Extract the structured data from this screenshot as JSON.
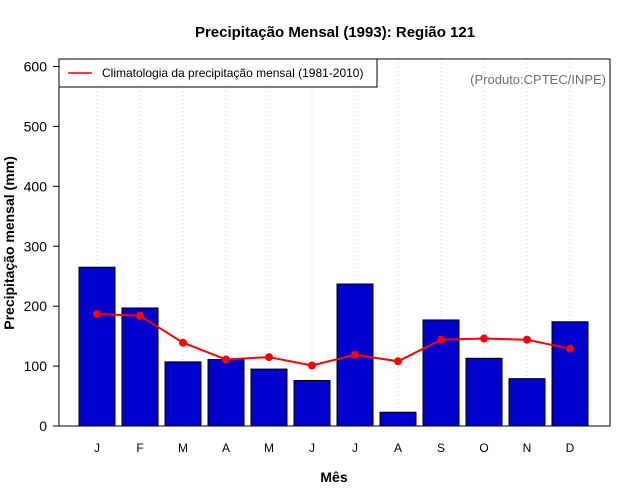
{
  "chart_data": {
    "type": "bar",
    "title": "Precipitação Mensal (1993): Região 121",
    "xlabel": "Mês",
    "ylabel": "Precipitação mensal (mm)",
    "ylim": [
      0,
      600
    ],
    "yticks": [
      0,
      100,
      200,
      300,
      400,
      500,
      600
    ],
    "categories": [
      "J",
      "F",
      "M",
      "A",
      "M",
      "J",
      "J",
      "A",
      "S",
      "O",
      "N",
      "D"
    ],
    "series": [
      {
        "name": "Precipitação mensal (1993)",
        "kind": "bar",
        "color": "#0000CD",
        "values": [
          265,
          197,
          107,
          111,
          95,
          76,
          237,
          23,
          177,
          113,
          79,
          174
        ]
      },
      {
        "name": "Climatologia da precipitação mensal (1981-2010)",
        "kind": "line",
        "color": "#FF0000",
        "values": [
          187,
          184,
          139,
          111,
          115,
          101,
          119,
          108,
          144,
          146,
          144,
          129
        ]
      }
    ],
    "legend": {
      "label": "Climatologia da precipitação mensal (1981-2010)",
      "position": "top-left"
    },
    "grid": "vertical dotted",
    "annotation": "(Produto:CPTEC/INPE)"
  }
}
